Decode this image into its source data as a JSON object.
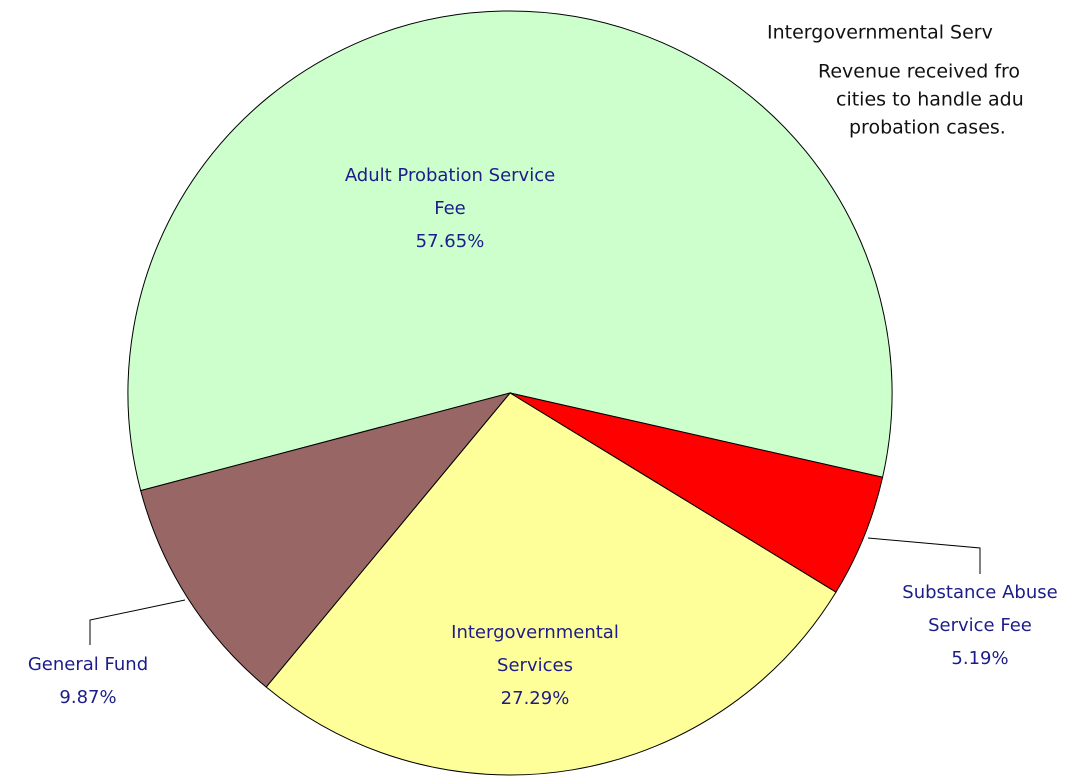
{
  "chart_data": {
    "type": "pie",
    "categories": [
      "Adult Probation Service Fee",
      "Substance Abuse Service Fee",
      "Intergovernmental Services",
      "General Fund"
    ],
    "values": [
      57.65,
      5.19,
      27.29,
      9.87
    ],
    "value_labels": [
      "57.65%",
      "5.19%",
      "27.29%",
      "9.87%"
    ],
    "colors": [
      "#ccffcc",
      "#ff0000",
      "#ffff99",
      "#996666"
    ],
    "tooltip": {
      "title": "Intergovernmental Serv",
      "lines": [
        "Revenue received fro",
        "cities to handle adu",
        "probation cases."
      ]
    }
  }
}
